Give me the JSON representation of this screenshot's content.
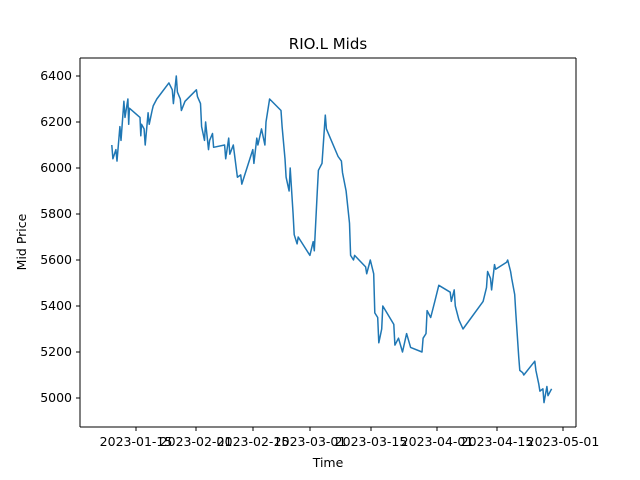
{
  "chart_data": {
    "type": "line",
    "title": "RIO.L Mids",
    "xlabel": "Time",
    "ylabel": "Mid Price",
    "grid": false,
    "legend": "none",
    "line_color": "#1f77b4",
    "xlim": [
      "2023-01-05",
      "2023-05-01"
    ],
    "ylim": [
      4880,
      6480
    ],
    "x_tick_labels": [
      "2023-01-15",
      "2023-02-01",
      "2023-02-15",
      "2023-03-01",
      "2023-03-15",
      "2023-04-01",
      "2023-04-15",
      "2023-05-01"
    ],
    "y_tick_values": [
      5000,
      5200,
      5400,
      5600,
      5800,
      6000,
      6200,
      6400
    ],
    "y_tick_labels": [
      "5000",
      "5200",
      "5400",
      "5600",
      "5800",
      "6000",
      "6200",
      "6400"
    ],
    "series": [
      {
        "x": [
          "2023-01-09",
          "2023-01-09",
          "2023-01-10",
          "2023-01-10",
          "2023-01-11",
          "2023-01-11",
          "2023-01-12",
          "2023-01-12",
          "2023-01-13",
          "2023-01-13",
          "2023-01-13",
          "2023-01-16",
          "2023-01-16",
          "2023-01-16",
          "2023-01-17",
          "2023-01-17",
          "2023-01-18",
          "2023-01-18",
          "2023-01-19",
          "2023-01-19",
          "2023-01-20",
          "2023-01-23",
          "2023-01-24",
          "2023-01-24",
          "2023-01-25",
          "2023-01-25",
          "2023-01-26",
          "2023-01-26",
          "2023-01-27",
          "2023-01-30",
          "2023-01-30",
          "2023-01-31",
          "2023-01-31",
          "2023-02-01",
          "2023-02-01",
          "2023-02-02",
          "2023-02-02",
          "2023-02-03",
          "2023-02-03",
          "2023-02-06",
          "2023-02-06",
          "2023-02-07",
          "2023-02-07",
          "2023-02-08",
          "2023-02-09",
          "2023-02-10",
          "2023-02-10",
          "2023-02-13",
          "2023-02-13",
          "2023-02-14",
          "2023-02-14",
          "2023-02-15",
          "2023-02-16",
          "2023-02-16",
          "2023-02-17",
          "2023-02-20",
          "2023-02-20",
          "2023-02-21",
          "2023-02-21",
          "2023-02-22",
          "2023-02-22",
          "2023-02-23",
          "2023-02-23",
          "2023-02-24",
          "2023-02-24",
          "2023-02-27",
          "2023-02-28",
          "2023-02-28",
          "2023-03-01",
          "2023-03-01",
          "2023-03-02",
          "2023-03-03",
          "2023-03-03",
          "2023-03-06",
          "2023-03-07",
          "2023-03-07",
          "2023-03-08",
          "2023-03-09",
          "2023-03-09",
          "2023-03-10",
          "2023-03-10",
          "2023-03-13",
          "2023-03-13",
          "2023-03-14",
          "2023-03-15",
          "2023-03-15",
          "2023-03-16",
          "2023-03-16",
          "2023-03-17",
          "2023-03-17",
          "2023-03-20",
          "2023-03-20",
          "2023-03-21",
          "2023-03-22",
          "2023-03-23",
          "2023-03-24",
          "2023-03-27",
          "2023-03-27",
          "2023-03-28",
          "2023-03-28",
          "2023-03-29",
          "2023-03-30",
          "2023-03-31",
          "2023-04-03",
          "2023-04-03",
          "2023-04-04",
          "2023-04-04",
          "2023-04-05",
          "2023-04-06",
          "2023-04-11",
          "2023-04-12",
          "2023-04-12",
          "2023-04-13",
          "2023-04-13",
          "2023-04-14",
          "2023-04-14",
          "2023-04-17",
          "2023-04-17",
          "2023-04-18",
          "2023-04-18",
          "2023-04-19",
          "2023-04-19",
          "2023-04-20",
          "2023-04-20",
          "2023-04-21",
          "2023-04-21",
          "2023-04-24",
          "2023-04-24",
          "2023-04-25",
          "2023-04-25",
          "2023-04-26",
          "2023-04-26",
          "2023-04-27",
          "2023-04-27",
          "2023-04-28"
        ],
        "y": [
          6100,
          6040,
          6080,
          6030,
          6180,
          6120,
          6290,
          6220,
          6300,
          6190,
          6260,
          6220,
          6140,
          6190,
          6170,
          6100,
          6240,
          6190,
          6250,
          6270,
          6300,
          6370,
          6340,
          6280,
          6400,
          6330,
          6300,
          6250,
          6290,
          6340,
          6310,
          6280,
          6180,
          6120,
          6200,
          6080,
          6120,
          6150,
          6090,
          6100,
          6040,
          6130,
          6060,
          6100,
          5960,
          5970,
          5930,
          6080,
          6020,
          6130,
          6100,
          6170,
          6100,
          6200,
          6300,
          6250,
          6180,
          6040,
          5960,
          5900,
          6000,
          5800,
          5710,
          5670,
          5700,
          5620,
          5680,
          5640,
          5900,
          5990,
          6020,
          6230,
          6170,
          6050,
          6030,
          5980,
          5900,
          5760,
          5620,
          5600,
          5620,
          5570,
          5540,
          5600,
          5540,
          5370,
          5350,
          5240,
          5300,
          5400,
          5320,
          5230,
          5260,
          5200,
          5280,
          5220,
          5200,
          5260,
          5280,
          5380,
          5350,
          5420,
          5490,
          5460,
          5420,
          5470,
          5400,
          5340,
          5300,
          5420,
          5480,
          5550,
          5520,
          5470,
          5580,
          5560,
          5590,
          5600,
          5550,
          5520,
          5450,
          5370,
          5180,
          5120,
          5110,
          5100,
          5160,
          5120,
          5060,
          5030,
          5040,
          4980,
          5050,
          5010,
          5040
        ]
      }
    ]
  }
}
